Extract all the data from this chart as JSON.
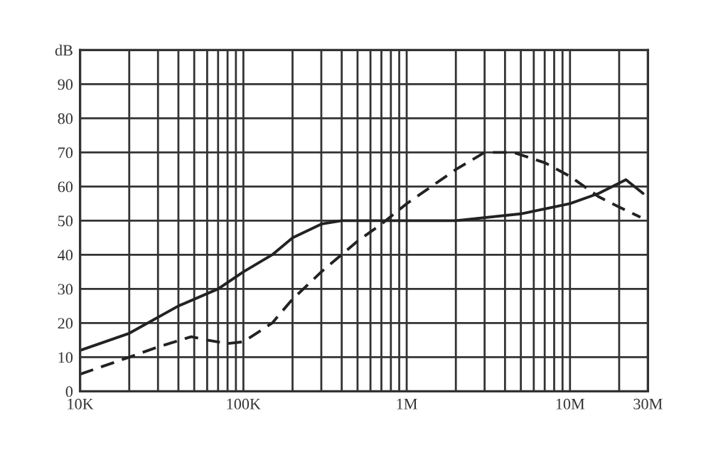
{
  "chart_data": {
    "type": "line",
    "log": "x",
    "grid": true,
    "legend": false,
    "marker": "none",
    "xlim": [
      10000,
      30000000
    ],
    "xticks": [
      {
        "value": 10000,
        "label": "10K"
      },
      {
        "value": 100000,
        "label": "100K"
      },
      {
        "value": 1000000,
        "label": "1M"
      },
      {
        "value": 10000000,
        "label": "10M"
      },
      {
        "value": 30000000,
        "label": "30M"
      }
    ],
    "ylim": [
      0,
      100
    ],
    "yticks": [
      0,
      10,
      20,
      30,
      40,
      50,
      60,
      70,
      80,
      90,
      {
        "value": 100,
        "label": "dB"
      }
    ],
    "series": [
      {
        "color": "#222222",
        "line_style": "solid",
        "x": [
          10000,
          20000,
          40000,
          70000,
          100000,
          150000,
          200000,
          300000,
          400000,
          1000000,
          2000000,
          5000000,
          10000000,
          15000000,
          22000000,
          28000000
        ],
        "values": [
          12,
          17,
          25,
          30,
          35,
          40,
          45,
          49,
          50,
          50,
          50,
          52,
          55,
          58,
          62,
          58
        ]
      },
      {
        "color": "#222222",
        "line_style": "dashed",
        "x": [
          10000,
          20000,
          30000,
          48000,
          60000,
          80000,
          100000,
          150000,
          200000,
          300000,
          500000,
          700000,
          1000000,
          2000000,
          3000000,
          4500000,
          7000000,
          10000000,
          15000000,
          20000000,
          27000000
        ],
        "values": [
          5,
          10,
          13,
          16,
          15,
          14,
          14.5,
          20,
          27,
          35,
          44,
          49,
          55,
          65,
          70,
          70,
          67,
          63,
          57,
          54,
          51
        ]
      }
    ]
  }
}
